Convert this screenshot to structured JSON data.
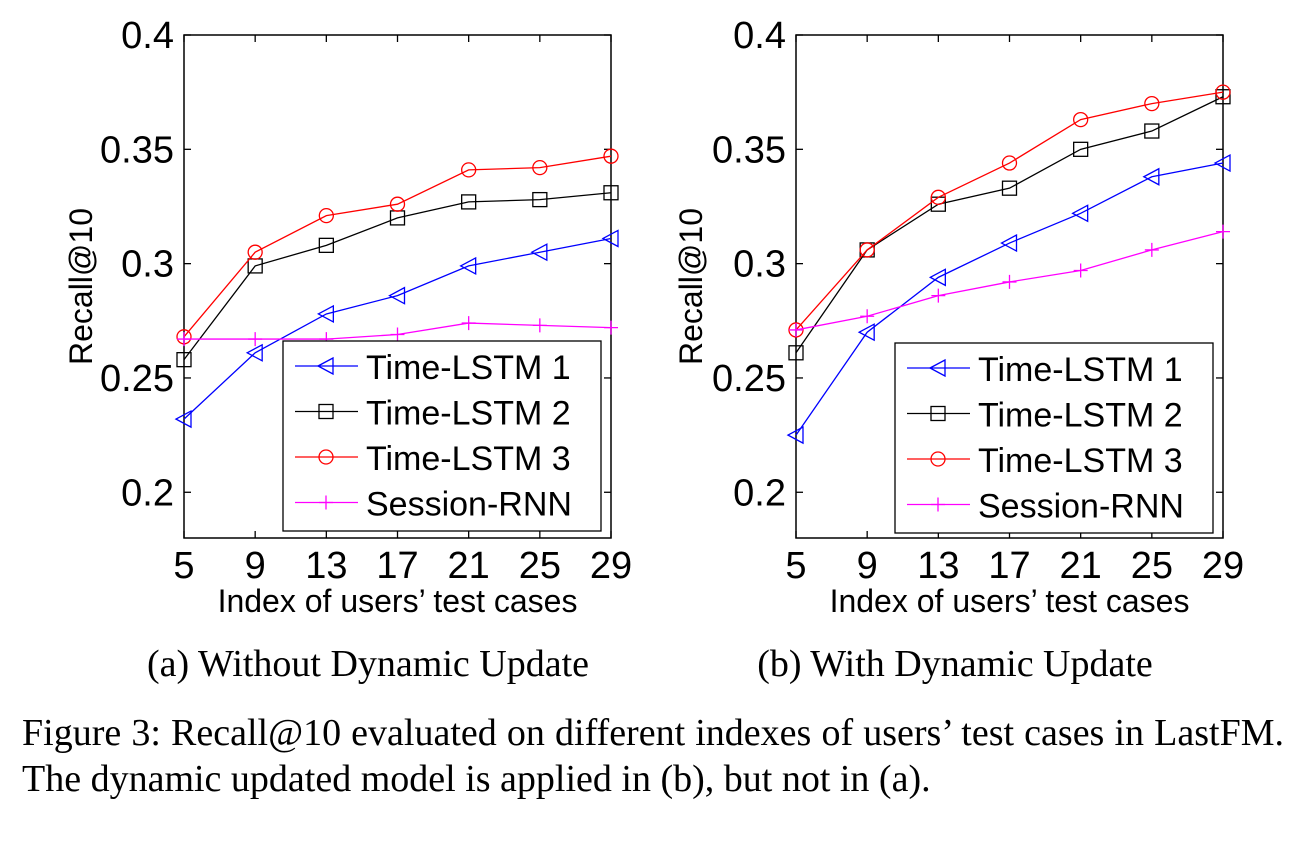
{
  "chart_data": [
    {
      "type": "line",
      "subcaption": "(a) Without Dynamic Update",
      "xlabel": "Index of users’ test cases",
      "ylabel": "Recall@10",
      "x": [
        5,
        9,
        13,
        17,
        21,
        25,
        29
      ],
      "xticks": [
        "5",
        "9",
        "13",
        "17",
        "21",
        "25",
        "29"
      ],
      "yticks": [
        "0.2",
        "0.25",
        "0.3",
        "0.35",
        "0.4"
      ],
      "ytick_values": [
        0.2,
        0.25,
        0.3,
        0.35,
        0.4
      ],
      "xlim": [
        5,
        29
      ],
      "ylim": [
        0.18,
        0.4
      ],
      "grid": false,
      "legend_position": "bottom-right",
      "series": [
        {
          "name": "Time-LSTM 1",
          "color": "#0000ff",
          "marker": "triangle-left",
          "values": [
            0.232,
            0.261,
            0.278,
            0.286,
            0.299,
            0.305,
            0.311
          ]
        },
        {
          "name": "Time-LSTM 2",
          "color": "#000000",
          "marker": "square",
          "values": [
            0.258,
            0.299,
            0.308,
            0.32,
            0.327,
            0.328,
            0.331
          ]
        },
        {
          "name": "Time-LSTM 3",
          "color": "#ff0000",
          "marker": "circle",
          "values": [
            0.268,
            0.305,
            0.321,
            0.326,
            0.341,
            0.342,
            0.347
          ]
        },
        {
          "name": "Session-RNN",
          "color": "#ff00ff",
          "marker": "plus",
          "values": [
            0.267,
            0.267,
            0.267,
            0.269,
            0.274,
            0.273,
            0.272
          ]
        }
      ]
    },
    {
      "type": "line",
      "subcaption": "(b) With Dynamic Update",
      "xlabel": "Index of users’ test cases",
      "ylabel": "Recall@10",
      "x": [
        5,
        9,
        13,
        17,
        21,
        25,
        29
      ],
      "xticks": [
        "5",
        "9",
        "13",
        "17",
        "21",
        "25",
        "29"
      ],
      "yticks": [
        "0.2",
        "0.25",
        "0.3",
        "0.35",
        "0.4"
      ],
      "ytick_values": [
        0.2,
        0.25,
        0.3,
        0.35,
        0.4
      ],
      "xlim": [
        5,
        29
      ],
      "ylim": [
        0.18,
        0.4
      ],
      "grid": false,
      "legend_position": "bottom-right",
      "series": [
        {
          "name": "Time-LSTM 1",
          "color": "#0000ff",
          "marker": "triangle-left",
          "values": [
            0.225,
            0.27,
            0.294,
            0.309,
            0.322,
            0.338,
            0.344
          ]
        },
        {
          "name": "Time-LSTM 2",
          "color": "#000000",
          "marker": "square",
          "values": [
            0.261,
            0.306,
            0.326,
            0.333,
            0.35,
            0.358,
            0.373
          ]
        },
        {
          "name": "Time-LSTM 3",
          "color": "#ff0000",
          "marker": "circle",
          "values": [
            0.271,
            0.306,
            0.329,
            0.344,
            0.363,
            0.37,
            0.375
          ]
        },
        {
          "name": "Session-RNN",
          "color": "#ff00ff",
          "marker": "plus",
          "values": [
            0.271,
            0.277,
            0.286,
            0.292,
            0.297,
            0.306,
            0.314
          ]
        }
      ]
    }
  ],
  "caption": "Figure 3: Recall@10 evaluated on different indexes of users’ test cases in LastFM. The dynamic updated model is applied in (b), but not in (a)."
}
